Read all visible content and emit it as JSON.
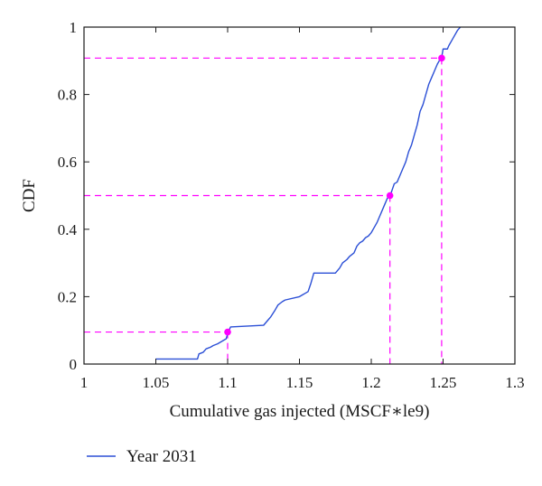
{
  "chart_data": {
    "type": "line",
    "xlabel": "Cumulative gas injected (MSCF∗le9)",
    "ylabel": "CDF",
    "xlim": [
      1.0,
      1.3
    ],
    "ylim": [
      0,
      1
    ],
    "x_ticks": [
      1,
      1.05,
      1.1,
      1.15,
      1.2,
      1.25,
      1.3
    ],
    "x_tick_labels": [
      "1",
      "1.05",
      "1.1",
      "1.15",
      "1.2",
      "1.25",
      "1.3"
    ],
    "y_ticks": [
      0,
      0.2,
      0.4,
      0.6,
      0.8,
      1
    ],
    "y_tick_labels": [
      "0",
      "0.2",
      "0.4",
      "0.6",
      "0.8",
      "1"
    ],
    "grid": false,
    "legend_position": "bottom-left",
    "series": [
      {
        "name": "Year 2031",
        "color": "#2b4fd6",
        "x": [
          1.05,
          1.079,
          1.08,
          1.083,
          1.085,
          1.088,
          1.09,
          1.093,
          1.095,
          1.097,
          1.099,
          1.1,
          1.101,
          1.102,
          1.125,
          1.128,
          1.13,
          1.133,
          1.135,
          1.138,
          1.14,
          1.15,
          1.152,
          1.154,
          1.156,
          1.158,
          1.16,
          1.175,
          1.178,
          1.18,
          1.183,
          1.185,
          1.188,
          1.19,
          1.192,
          1.194,
          1.196,
          1.198,
          1.2,
          1.202,
          1.204,
          1.206,
          1.208,
          1.21,
          1.212,
          1.214,
          1.216,
          1.218,
          1.22,
          1.222,
          1.224,
          1.226,
          1.228,
          1.23,
          1.232,
          1.234,
          1.236,
          1.238,
          1.24,
          1.242,
          1.244,
          1.246,
          1.248,
          1.249,
          1.25,
          1.253,
          1.254,
          1.256,
          1.258,
          1.26,
          1.262
        ],
        "values": [
          0.015,
          0.015,
          0.03,
          0.035,
          0.045,
          0.05,
          0.055,
          0.06,
          0.065,
          0.07,
          0.075,
          0.09,
          0.1,
          0.11,
          0.115,
          0.13,
          0.14,
          0.16,
          0.175,
          0.185,
          0.19,
          0.2,
          0.205,
          0.21,
          0.215,
          0.24,
          0.27,
          0.27,
          0.285,
          0.3,
          0.31,
          0.32,
          0.33,
          0.35,
          0.36,
          0.365,
          0.375,
          0.38,
          0.39,
          0.405,
          0.42,
          0.44,
          0.46,
          0.48,
          0.5,
          0.51,
          0.535,
          0.54,
          0.56,
          0.58,
          0.6,
          0.63,
          0.65,
          0.68,
          0.71,
          0.75,
          0.77,
          0.8,
          0.83,
          0.85,
          0.87,
          0.89,
          0.905,
          0.91,
          0.935,
          0.935,
          0.945,
          0.96,
          0.975,
          0.99,
          1.0
        ]
      }
    ],
    "markers": [
      {
        "x": 1.1,
        "y": 0.095,
        "color": "#ff00ff"
      },
      {
        "x": 1.213,
        "y": 0.5,
        "color": "#ff00ff"
      },
      {
        "x": 1.249,
        "y": 0.908,
        "color": "#ff00ff"
      }
    ]
  }
}
